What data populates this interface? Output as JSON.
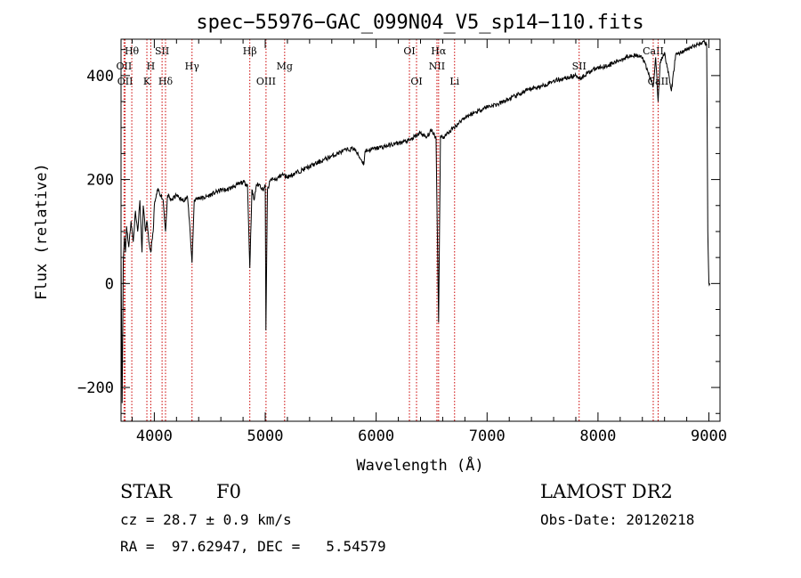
{
  "chart_data": {
    "type": "line",
    "title": "spec−55976−GAC_099N04_V5_sp14−110.fits",
    "xlabel": "Wavelength (Å)",
    "ylabel": "Flux (relative)",
    "xlim": [
      3700,
      9100
    ],
    "ylim": [
      -265,
      470
    ],
    "x_ticks": [
      4000,
      5000,
      6000,
      7000,
      8000,
      9000
    ],
    "y_ticks": [
      -200,
      0,
      200,
      400
    ],
    "x_tick_labels": [
      "4000",
      "5000",
      "6000",
      "7000",
      "8000",
      "9000"
    ],
    "y_tick_labels": [
      "−200",
      "0",
      "200",
      "400"
    ],
    "grid": false,
    "series": [
      {
        "x": [
          3700,
          3710,
          3720,
          3730,
          3740,
          3750,
          3770,
          3790,
          3810,
          3830,
          3850,
          3870,
          3889,
          3900,
          3920,
          3933,
          3950,
          3968,
          3990,
          4000,
          4030,
          4060,
          4080,
          4101,
          4120,
          4150,
          4200,
          4250,
          4300,
          4320,
          4340,
          4360,
          4400,
          4450,
          4500,
          4550,
          4600,
          4650,
          4700,
          4750,
          4800,
          4840,
          4861,
          4880,
          4900,
          4920,
          4950,
          4980,
          5000,
          5006,
          5020,
          5050,
          5100,
          5150,
          5200,
          5300,
          5400,
          5500,
          5600,
          5700,
          5800,
          5890,
          5900,
          6000,
          6100,
          6200,
          6300,
          6400,
          6450,
          6500,
          6540,
          6563,
          6580,
          6600,
          6650,
          6700,
          6800,
          6900,
          7000,
          7100,
          7200,
          7300,
          7400,
          7500,
          7600,
          7700,
          7800,
          7850,
          7900,
          8000,
          8100,
          8200,
          8300,
          8400,
          8498,
          8520,
          8542,
          8560,
          8600,
          8662,
          8700,
          8800,
          8900,
          8960,
          8980,
          8990,
          9000,
          9010
        ],
        "y": [
          60,
          -230,
          40,
          90,
          60,
          110,
          70,
          120,
          80,
          140,
          100,
          160,
          60,
          150,
          100,
          120,
          80,
          60,
          100,
          150,
          180,
          170,
          160,
          100,
          170,
          160,
          170,
          160,
          165,
          110,
          40,
          160,
          165,
          165,
          170,
          175,
          180,
          180,
          185,
          190,
          195,
          190,
          30,
          180,
          160,
          190,
          190,
          180,
          190,
          -90,
          180,
          200,
          200,
          210,
          205,
          215,
          225,
          235,
          245,
          255,
          260,
          230,
          255,
          260,
          265,
          270,
          275,
          290,
          280,
          295,
          280,
          -75,
          285,
          280,
          290,
          300,
          320,
          330,
          340,
          345,
          355,
          365,
          375,
          380,
          390,
          395,
          400,
          395,
          405,
          415,
          420,
          430,
          440,
          435,
          380,
          435,
          350,
          425,
          445,
          370,
          440,
          450,
          460,
          465,
          460,
          100,
          0,
          0
        ]
      }
    ],
    "annotations": {
      "lines": [
        {
          "x": 3727,
          "label": "OII",
          "row": "1"
        },
        {
          "x": 3737,
          "label": "OII",
          "row": "2"
        },
        {
          "x": 3797,
          "label": "Hθ",
          "row": "0"
        },
        {
          "x": 3933,
          "label": "K",
          "row": "2"
        },
        {
          "x": 3968,
          "label": "H",
          "row": "1"
        },
        {
          "x": 4070,
          "label": "SII",
          "row": "0"
        },
        {
          "x": 4101,
          "label": "Hδ",
          "row": "2"
        },
        {
          "x": 4340,
          "label": "Hγ",
          "row": "1"
        },
        {
          "x": 4861,
          "label": "Hβ",
          "row": "0"
        },
        {
          "x": 5007,
          "label": "OIII",
          "row": "2"
        },
        {
          "x": 5175,
          "label": "Mg",
          "row": "1"
        },
        {
          "x": 6300,
          "label": "OI",
          "row": "0"
        },
        {
          "x": 6364,
          "label": "OI",
          "row": "2"
        },
        {
          "x": 6548,
          "label": "NII",
          "row": "1"
        },
        {
          "x": 6563,
          "label": "Hα",
          "row": "0"
        },
        {
          "x": 6707,
          "label": "Li",
          "row": "2"
        },
        {
          "x": 7830,
          "label": "SII",
          "row": "1"
        },
        {
          "x": 8498,
          "label": "CaII",
          "row": "0"
        },
        {
          "x": 8542,
          "label": "CaII",
          "row": "2"
        }
      ],
      "line_color": "#cc0000"
    }
  },
  "info": {
    "class_label": "STAR",
    "subclass": "F0",
    "cz": "cz = 28.7 ± 0.9 km/s",
    "coords": "RA =  97.62947, DEC =   5.54579",
    "survey": "LAMOST DR2",
    "obs_date": "Obs-Date: 20120218"
  }
}
